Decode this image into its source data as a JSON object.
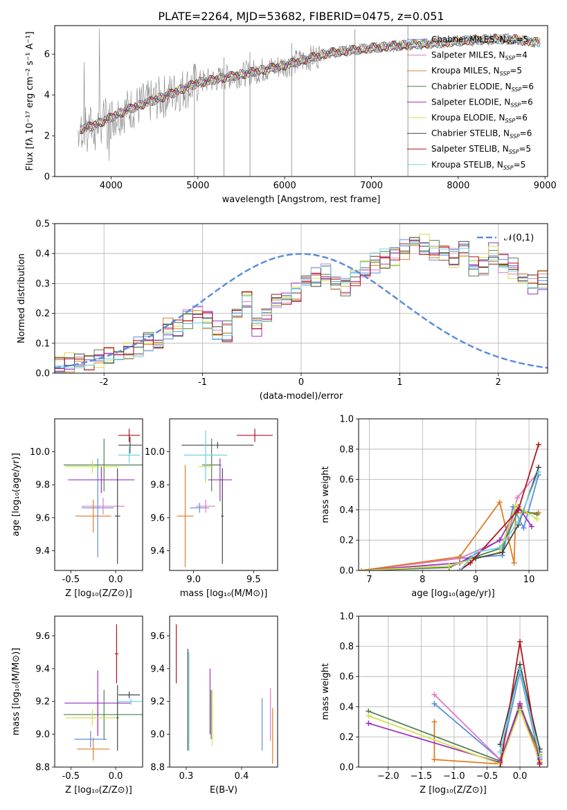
{
  "figure_title": "PLATE=2264, MJD=53682, FIBERID=0475, z=0.051",
  "colors": {
    "Chabrier MILES": "#5b8cdb",
    "Salpeter MILES": "#e377c2",
    "Kroupa MILES": "#e07b22",
    "Chabrier ELODIE": "#4f7f4f",
    "Salpeter ELODIE": "#9b30c0",
    "Kroupa ELODIE": "#d4e04a",
    "Chabrier STELIB": "#444444",
    "Salpeter STELIB": "#b0141c",
    "Kroupa STELIB": "#6fd3df",
    "data": "#808080",
    "normal": "#5b8cdb"
  },
  "chart_data": [
    {
      "type": "line",
      "id": "spectrum",
      "title": "PLATE=2264, MJD=53682, FIBERID=0475, z=0.051",
      "xlabel": "wavelength [Angstrom, rest frame]",
      "ylabel": "Flux [fλ 10⁻¹⁷ erg cm⁻² s⁻¹ A⁻¹]",
      "xlim": [
        3350,
        9030
      ],
      "ylim": [
        0,
        7.4
      ],
      "xticks": [
        4000,
        5000,
        6000,
        7000,
        8000,
        9000
      ],
      "yticks": [
        0,
        2,
        4,
        6
      ],
      "continuum_points": [
        [
          3620,
          2.3
        ],
        [
          3800,
          2.5
        ],
        [
          3950,
          2.8
        ],
        [
          4200,
          3.3
        ],
        [
          4600,
          3.9
        ],
        [
          5000,
          4.6
        ],
        [
          5500,
          5.0
        ],
        [
          6000,
          5.45
        ],
        [
          6500,
          6.05
        ],
        [
          7000,
          6.3
        ],
        [
          7400,
          6.45
        ],
        [
          7800,
          6.55
        ],
        [
          8200,
          6.7
        ],
        [
          8600,
          6.75
        ],
        [
          8950,
          6.55
        ]
      ],
      "legend": [
        {
          "name": "Chabrier MILES",
          "label": "Chabrier MILES, N",
          "sub": "SSP",
          "n": "=5"
        },
        {
          "name": "Salpeter MILES",
          "label": "Salpeter MILES, N",
          "sub": "SSP",
          "n": "=4"
        },
        {
          "name": "Kroupa MILES",
          "label": "Kroupa MILES, N",
          "sub": "SSP",
          "n": "=5"
        },
        {
          "name": "Chabrier ELODIE",
          "label": "Chabrier ELODIE, N",
          "sub": "SSP",
          "n": "=6"
        },
        {
          "name": "Salpeter ELODIE",
          "label": "Salpeter ELODIE, N",
          "sub": "SSP",
          "n": "=6"
        },
        {
          "name": "Kroupa ELODIE",
          "label": "Kroupa ELODIE, N",
          "sub": "SSP",
          "n": "=6"
        },
        {
          "name": "Chabrier STELIB",
          "label": "Chabrier STELIB, N",
          "sub": "SSP",
          "n": "=6"
        },
        {
          "name": "Salpeter STELIB",
          "label": "Salpeter STELIB, N",
          "sub": "SSP",
          "n": "=5"
        },
        {
          "name": "Kroupa STELIB",
          "label": "Kroupa STELIB, N",
          "sub": "SSP",
          "n": "=5"
        }
      ]
    },
    {
      "type": "line",
      "id": "residuals",
      "xlabel": "(data-model)/error",
      "ylabel": "Normed distribution",
      "xlim": [
        -2.5,
        2.5
      ],
      "ylim": [
        0,
        0.5
      ],
      "xticks": [
        -2,
        -1,
        0,
        1,
        2
      ],
      "yticks": [
        0.0,
        0.1,
        0.2,
        0.3,
        0.4,
        0.5
      ],
      "legend_label": "𝒩(0,1)",
      "bin_width": 0.1,
      "hist_base": [
        0.03,
        0.035,
        0.04,
        0.045,
        0.05,
        0.055,
        0.06,
        0.075,
        0.09,
        0.11,
        0.12,
        0.15,
        0.15,
        0.18,
        0.19,
        0.18,
        0.14,
        0.14,
        0.2,
        0.25,
        0.16,
        0.21,
        0.24,
        0.25,
        0.27,
        0.29,
        0.32,
        0.33,
        0.3,
        0.29,
        0.32,
        0.35,
        0.37,
        0.38,
        0.39,
        0.41,
        0.43,
        0.43,
        0.41,
        0.4,
        0.39,
        0.41,
        0.36,
        0.35,
        0.4,
        0.37,
        0.35,
        0.33,
        0.3,
        0.31,
        0.38,
        0.35,
        0.3,
        0.32,
        0.29,
        0.25,
        0.2,
        0.24,
        0.27,
        0.26,
        0.27,
        0.2,
        0.17,
        0.19,
        0.18,
        0.17,
        0.14,
        0.11,
        0.1,
        0.11,
        0.09,
        0.07,
        0.06,
        0.05,
        0.05,
        0.04,
        0.035,
        0.03,
        0.025,
        0.025
      ]
    },
    {
      "type": "scatter",
      "id": "age-vs-Z",
      "xlabel": "Z [log₁₀(Z/Z⊙)]",
      "ylabel": "age  [log₁₀(age/yr)]",
      "xlim": [
        -0.68,
        0.3
      ],
      "ylim": [
        9.28,
        10.2
      ],
      "xticks": [
        -0.5,
        0.0
      ],
      "yticks": [
        9.4,
        9.6,
        9.8,
        10.0
      ],
      "points": [
        {
          "series": "Chabrier MILES",
          "x": -0.2,
          "y": 9.66,
          "xerr": 0.18,
          "yerr": 0.3
        },
        {
          "series": "Salpeter MILES",
          "x": -0.14,
          "y": 9.67,
          "xerr": 0.24,
          "yerr": 0.05
        },
        {
          "series": "Kroupa MILES",
          "x": -0.25,
          "y": 9.61,
          "xerr": 0.2,
          "yerr": 0.1
        },
        {
          "series": "Chabrier ELODIE",
          "x": -0.13,
          "y": 9.92,
          "xerr": 0.45,
          "yerr": 0.16
        },
        {
          "series": "Salpeter ELODIE",
          "x": -0.16,
          "y": 9.83,
          "xerr": 0.37,
          "yerr": 0.08
        },
        {
          "series": "Kroupa ELODIE",
          "x": -0.26,
          "y": 9.91,
          "xerr": 0.3,
          "yerr": 0.04
        },
        {
          "series": "Chabrier STELIB",
          "x": 0.02,
          "y": 9.61,
          "xerr": 0.03,
          "yerr": 0.29
        },
        {
          "series": "Salpeter STELIB",
          "x": 0.15,
          "y": 10.1,
          "xerr": 0.12,
          "yerr": 0.04
        },
        {
          "series": "Chabrier STELIB",
          "x": 0.16,
          "y": 10.04,
          "xerr": 0.13,
          "yerr": 0.05
        },
        {
          "series": "Kroupa STELIB",
          "x": 0.15,
          "y": 9.98,
          "xerr": 0.12,
          "yerr": 0.05
        }
      ]
    },
    {
      "type": "scatter",
      "id": "age-vs-mass",
      "xlabel": "mass [log₁₀(M/M⊙)]",
      "ylabel": "",
      "xlim": [
        8.8,
        9.7
      ],
      "ylim": [
        9.28,
        10.2
      ],
      "xticks": [
        9.0,
        9.5
      ],
      "yticks": [
        9.4,
        9.6,
        9.8,
        10.0
      ],
      "points": [
        {
          "series": "Chabrier MILES",
          "x": 9.05,
          "y": 9.66,
          "xerr": 0.08,
          "yerr": 0.03
        },
        {
          "series": "Salpeter MILES",
          "x": 9.1,
          "y": 9.67,
          "xerr": 0.08,
          "yerr": 0.04
        },
        {
          "series": "Kroupa MILES",
          "x": 8.93,
          "y": 9.61,
          "xerr": 0.07,
          "yerr": 0.31
        },
        {
          "series": "Chabrier ELODIE",
          "x": 9.15,
          "y": 9.92,
          "xerr": 0.08,
          "yerr": 0.16
        },
        {
          "series": "Salpeter ELODIE",
          "x": 9.22,
          "y": 9.83,
          "xerr": 0.1,
          "yerr": 0.13
        },
        {
          "series": "Kroupa ELODIE",
          "x": 9.1,
          "y": 9.91,
          "xerr": 0.06,
          "yerr": 0.1
        },
        {
          "series": "Chabrier STELIB",
          "x": 9.24,
          "y": 9.61,
          "xerr": 0.01,
          "yerr": 0.29
        },
        {
          "series": "Salpeter STELIB",
          "x": 9.51,
          "y": 10.1,
          "xerr": 0.15,
          "yerr": 0.04
        },
        {
          "series": "Chabrier STELIB",
          "x": 9.2,
          "y": 10.04,
          "xerr": 0.3,
          "yerr": 0.02
        },
        {
          "series": "Kroupa STELIB",
          "x": 9.1,
          "y": 9.98,
          "xerr": 0.18,
          "yerr": 0.15
        }
      ]
    },
    {
      "type": "line",
      "id": "weight-vs-age",
      "xlabel": "age  [log₁₀(age/yr)]",
      "ylabel": "mass weight",
      "xlim": [
        6.8,
        10.35
      ],
      "ylim": [
        0,
        1.0
      ],
      "xticks": [
        7,
        8,
        9,
        10
      ],
      "yticks": [
        0.0,
        0.2,
        0.4,
        0.6,
        0.8,
        1.0
      ],
      "series": [
        {
          "name": "Chabrier MILES",
          "x": [
            6.85,
            8.7,
            9.5,
            9.7,
            9.9,
            10.18
          ],
          "y": [
            0.0,
            0.08,
            0.1,
            0.42,
            0.28,
            0.63
          ]
        },
        {
          "name": "Salpeter MILES",
          "x": [
            6.85,
            8.7,
            9.6,
            9.78,
            10.18
          ],
          "y": [
            0.0,
            0.08,
            0.22,
            0.48,
            0.65
          ]
        },
        {
          "name": "Kroupa MILES",
          "x": [
            6.85,
            8.7,
            9.45,
            9.72,
            9.75,
            10.18
          ],
          "y": [
            0.0,
            0.09,
            0.45,
            0.05,
            0.38,
            0.38
          ]
        },
        {
          "name": "Chabrier ELODIE",
          "x": [
            6.85,
            8.5,
            8.9,
            9.5,
            9.8,
            10.15
          ],
          "y": [
            0.0,
            0.02,
            0.08,
            0.15,
            0.4,
            0.37
          ]
        },
        {
          "name": "Salpeter ELODIE",
          "x": [
            6.85,
            8.7,
            9.45,
            9.8,
            10.05
          ],
          "y": [
            0.0,
            0.05,
            0.2,
            0.42,
            0.29
          ]
        },
        {
          "name": "Kroupa ELODIE",
          "x": [
            6.85,
            8.5,
            8.9,
            9.45,
            9.75,
            10.15
          ],
          "y": [
            0.0,
            0.03,
            0.07,
            0.12,
            0.43,
            0.34
          ]
        },
        {
          "name": "Chabrier STELIB",
          "x": [
            8.7,
            9.0,
            9.5,
            9.8,
            10.18
          ],
          "y": [
            0.0,
            0.08,
            0.12,
            0.3,
            0.68
          ]
        },
        {
          "name": "Salpeter STELIB",
          "x": [
            8.7,
            8.9,
            9.8,
            10.18
          ],
          "y": [
            0.0,
            0.05,
            0.4,
            0.83
          ]
        },
        {
          "name": "Kroupa STELIB",
          "x": [
            8.7,
            9.0,
            9.45,
            9.8,
            10.18
          ],
          "y": [
            0.0,
            0.12,
            0.15,
            0.32,
            0.65
          ]
        }
      ]
    },
    {
      "type": "scatter",
      "id": "mass-vs-Z",
      "xlabel": "Z [log₁₀(Z/Z⊙)]",
      "ylabel": "mass [log₁₀(M/M⊙)]",
      "xlim": [
        -0.68,
        0.3
      ],
      "ylim": [
        8.8,
        9.72
      ],
      "xticks": [
        -0.5,
        0.0
      ],
      "yticks": [
        8.8,
        9.0,
        9.2,
        9.4,
        9.6
      ],
      "points": [
        {
          "series": "Chabrier MILES",
          "x": -0.28,
          "y": 8.97,
          "xerr": 0.18,
          "yerr": 0.05
        },
        {
          "series": "Salpeter MILES",
          "x": -0.2,
          "y": 9.1,
          "xerr": 0.24,
          "yerr": 0.1
        },
        {
          "series": "Kroupa MILES",
          "x": -0.25,
          "y": 8.91,
          "xerr": 0.18,
          "yerr": 0.07
        },
        {
          "series": "Chabrier ELODIE",
          "x": -0.13,
          "y": 9.12,
          "xerr": 0.45,
          "yerr": 0.15
        },
        {
          "series": "Salpeter ELODIE",
          "x": -0.2,
          "y": 9.19,
          "xerr": 0.37,
          "yerr": 0.2
        },
        {
          "series": "Kroupa ELODIE",
          "x": -0.26,
          "y": 9.1,
          "xerr": 0.3,
          "yerr": 0.05
        },
        {
          "series": "Chabrier STELIB",
          "x": 0.02,
          "y": 9.1,
          "xerr": 0.01,
          "yerr": 0.2
        },
        {
          "series": "Salpeter STELIB",
          "x": 0.01,
          "y": 9.49,
          "xerr": 0.02,
          "yerr": 0.18
        },
        {
          "series": "Chabrier STELIB",
          "x": 0.15,
          "y": 9.24,
          "xerr": 0.12,
          "yerr": 0.02
        },
        {
          "series": "Kroupa STELIB",
          "x": 0.17,
          "y": 9.2,
          "xerr": 0.15,
          "yerr": 0.02
        }
      ]
    },
    {
      "type": "scatter",
      "id": "mass-vs-ebv",
      "xlabel": "E(B-V)",
      "ylabel": "",
      "xlim": [
        0.27,
        0.465
      ],
      "ylim": [
        8.8,
        9.72
      ],
      "xticks": [
        0.3,
        0.4
      ],
      "yticks": [
        8.8,
        9.0,
        9.2,
        9.4,
        9.6
      ],
      "points": [
        {
          "series": "Salpeter STELIB",
          "x": 0.282,
          "y": 9.49,
          "yerr": 0.18
        },
        {
          "series": "Chabrier STELIB",
          "x": 0.303,
          "y": 9.21,
          "yerr": 0.31
        },
        {
          "series": "Kroupa STELIB",
          "x": 0.305,
          "y": 9.2,
          "yerr": 0.3
        },
        {
          "series": "Salpeter ELODIE",
          "x": 0.343,
          "y": 9.2,
          "yerr": 0.2
        },
        {
          "series": "Chabrier ELODIE",
          "x": 0.345,
          "y": 9.12,
          "yerr": 0.15
        },
        {
          "series": "Kroupa ELODIE",
          "x": 0.347,
          "y": 9.1,
          "yerr": 0.17
        },
        {
          "series": "Chabrier MILES",
          "x": 0.437,
          "y": 9.06,
          "yerr": 0.16
        },
        {
          "series": "Salpeter MILES",
          "x": 0.452,
          "y": 9.12,
          "yerr": 0.16
        },
        {
          "series": "Kroupa MILES",
          "x": 0.456,
          "y": 8.99,
          "yerr": 0.17
        }
      ]
    },
    {
      "type": "line",
      "id": "weight-vs-Z",
      "xlabel": "Z [log₁₀(Z/Z⊙)]",
      "ylabel": "mass weight",
      "xlim": [
        -2.45,
        0.42
      ],
      "ylim": [
        0,
        1.0
      ],
      "xticks": [
        -2.0,
        -1.5,
        -1.0,
        -0.5,
        0.0
      ],
      "yticks": [
        0.0,
        0.2,
        0.4,
        0.6,
        0.8,
        1.0
      ],
      "series": [
        {
          "name": "Chabrier MILES",
          "x": [
            -1.3,
            -0.3,
            0.0,
            0.3
          ],
          "y": [
            0.42,
            0.05,
            0.63,
            0.05
          ]
        },
        {
          "name": "Salpeter MILES",
          "x": [
            -1.3,
            -0.3,
            0.0,
            0.3
          ],
          "y": [
            0.48,
            0.05,
            0.42,
            0.06
          ]
        },
        {
          "name": "Kroupa MILES",
          "x": [
            -1.3,
            -1.3,
            -0.3,
            0.0,
            0.3
          ],
          "y": [
            0.3,
            0.05,
            0.02,
            0.41,
            0.08
          ]
        },
        {
          "name": "Chabrier ELODIE",
          "x": [
            -2.3,
            -0.3,
            0.0,
            0.3
          ],
          "y": [
            0.37,
            0.04,
            0.4,
            0.1
          ]
        },
        {
          "name": "Salpeter ELODIE",
          "x": [
            -2.3,
            -0.3,
            0.0,
            0.3
          ],
          "y": [
            0.29,
            0.03,
            0.42,
            0.03
          ]
        },
        {
          "name": "Kroupa ELODIE",
          "x": [
            -2.3,
            -0.3,
            0.0,
            0.3
          ],
          "y": [
            0.34,
            0.02,
            0.38,
            0.04
          ]
        },
        {
          "name": "Chabrier STELIB",
          "x": [
            -0.3,
            0.0,
            0.3
          ],
          "y": [
            0.15,
            0.68,
            0.12
          ]
        },
        {
          "name": "Salpeter STELIB",
          "x": [
            -0.3,
            0.0,
            0.3
          ],
          "y": [
            0.0,
            0.83,
            0.02
          ]
        },
        {
          "name": "Kroupa STELIB",
          "x": [
            -0.3,
            0.0,
            0.3
          ],
          "y": [
            0.1,
            0.65,
            0.07
          ]
        }
      ]
    }
  ]
}
